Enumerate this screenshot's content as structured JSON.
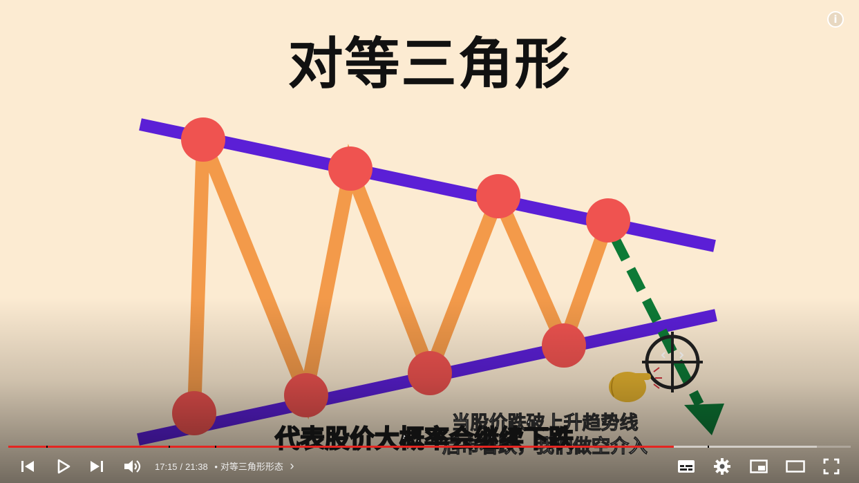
{
  "video": {
    "title_overlay": "对等三角形",
    "subtitle_primary": "代表股价大概率会继续下跌",
    "subtitle_secondary_line1": "当股价跌破上升趋势线",
    "subtitle_secondary_line2": "后市看跌，我们做空介入",
    "info_label": "i"
  },
  "player": {
    "current_time": "17:15",
    "separator": "/",
    "duration": "21:38",
    "bullet": "•",
    "chapter": "对等三角形形态",
    "chapter_arrow": "›",
    "progress_fraction": 0.79,
    "buffer_fraction": 0.96,
    "chapter_markers": 4
  },
  "controls": {
    "left": [
      "previous-icon",
      "play-icon",
      "next-icon",
      "volume-icon"
    ],
    "right": [
      "subtitles-icon",
      "settings-icon",
      "miniplayer-icon",
      "theater-icon",
      "fullscreen-icon"
    ]
  },
  "colors": {
    "background": "#fcebd2",
    "trendline": "#5b1fd6",
    "zigzag": "#f39a4a",
    "pivot": "#ef5350",
    "breakout_arrow": "#0d7a36",
    "progress": "#e52521"
  }
}
